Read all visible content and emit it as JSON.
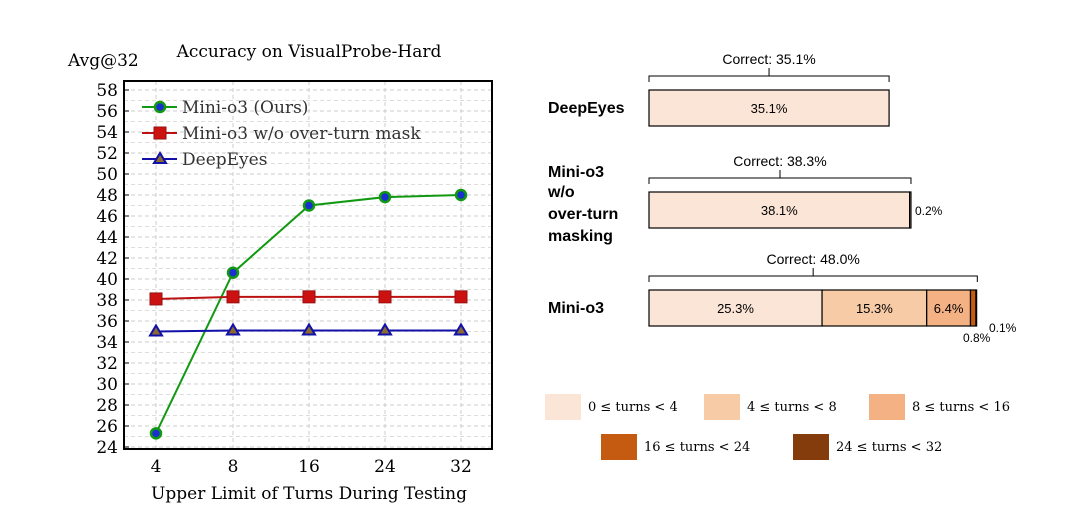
{
  "chart_data": [
    {
      "type": "line",
      "title": "Accuracy on VisualProbe-Hard",
      "ylabel": "Avg@32",
      "xlabel": "Upper Limit of Turns During Testing",
      "categories": [
        "4",
        "8",
        "16",
        "24",
        "32"
      ],
      "ylim": [
        24,
        58
      ],
      "yticks": [
        24,
        26,
        28,
        30,
        32,
        34,
        36,
        38,
        40,
        42,
        44,
        46,
        48,
        50,
        52,
        54,
        56,
        58
      ],
      "grid": true,
      "legend": "top-left",
      "series": [
        {
          "name": "Mini-o3 (Ours)",
          "values": [
            25.3,
            40.6,
            47.0,
            47.8,
            48.0
          ],
          "color": "#119911",
          "marker": "circle"
        },
        {
          "name": "Mini-o3 w/o over-turn mask",
          "values": [
            38.1,
            38.3,
            38.3,
            38.3,
            38.3
          ],
          "color": "#bb1111",
          "marker": "square"
        },
        {
          "name": "DeepEyes",
          "values": [
            35.0,
            35.1,
            35.1,
            35.1,
            35.1
          ],
          "color": "#1111aa",
          "marker": "triangle"
        }
      ]
    },
    {
      "type": "bar",
      "orientation": "horizontal",
      "stacked": true,
      "legend": [
        {
          "label": "0 ≤ turns < 4",
          "color": "#fbe5d6"
        },
        {
          "label": "4 ≤ turns < 8",
          "color": "#f8cba7"
        },
        {
          "label": "8 ≤ turns < 16",
          "color": "#f4b183"
        },
        {
          "label": "16 ≤ turns < 24",
          "color": "#c55a11"
        },
        {
          "label": "24 ≤ turns < 32",
          "color": "#843c0c"
        }
      ],
      "rows": [
        {
          "name": "DeepEyes",
          "name_lines": [
            "DeepEyes"
          ],
          "correct": "Correct: 35.1%",
          "values": [
            35.1
          ],
          "labels": [
            "35.1%"
          ]
        },
        {
          "name": "Mini-o3 w/o over-turn masking",
          "name_lines": [
            "Mini-o3",
            "w/o",
            "over-turn",
            "masking"
          ],
          "correct": "Correct: 38.3%",
          "values": [
            38.1,
            0.2
          ],
          "labels": [
            "38.1%",
            "0.2%"
          ]
        },
        {
          "name": "Mini-o3",
          "name_lines": [
            "Mini-o3"
          ],
          "correct": "Correct: 48.0%",
          "values": [
            25.3,
            15.3,
            6.4,
            0.8,
            0.1
          ],
          "labels": [
            "25.3%",
            "15.3%",
            "6.4%",
            "0.8%",
            "0.1%"
          ]
        }
      ]
    }
  ]
}
